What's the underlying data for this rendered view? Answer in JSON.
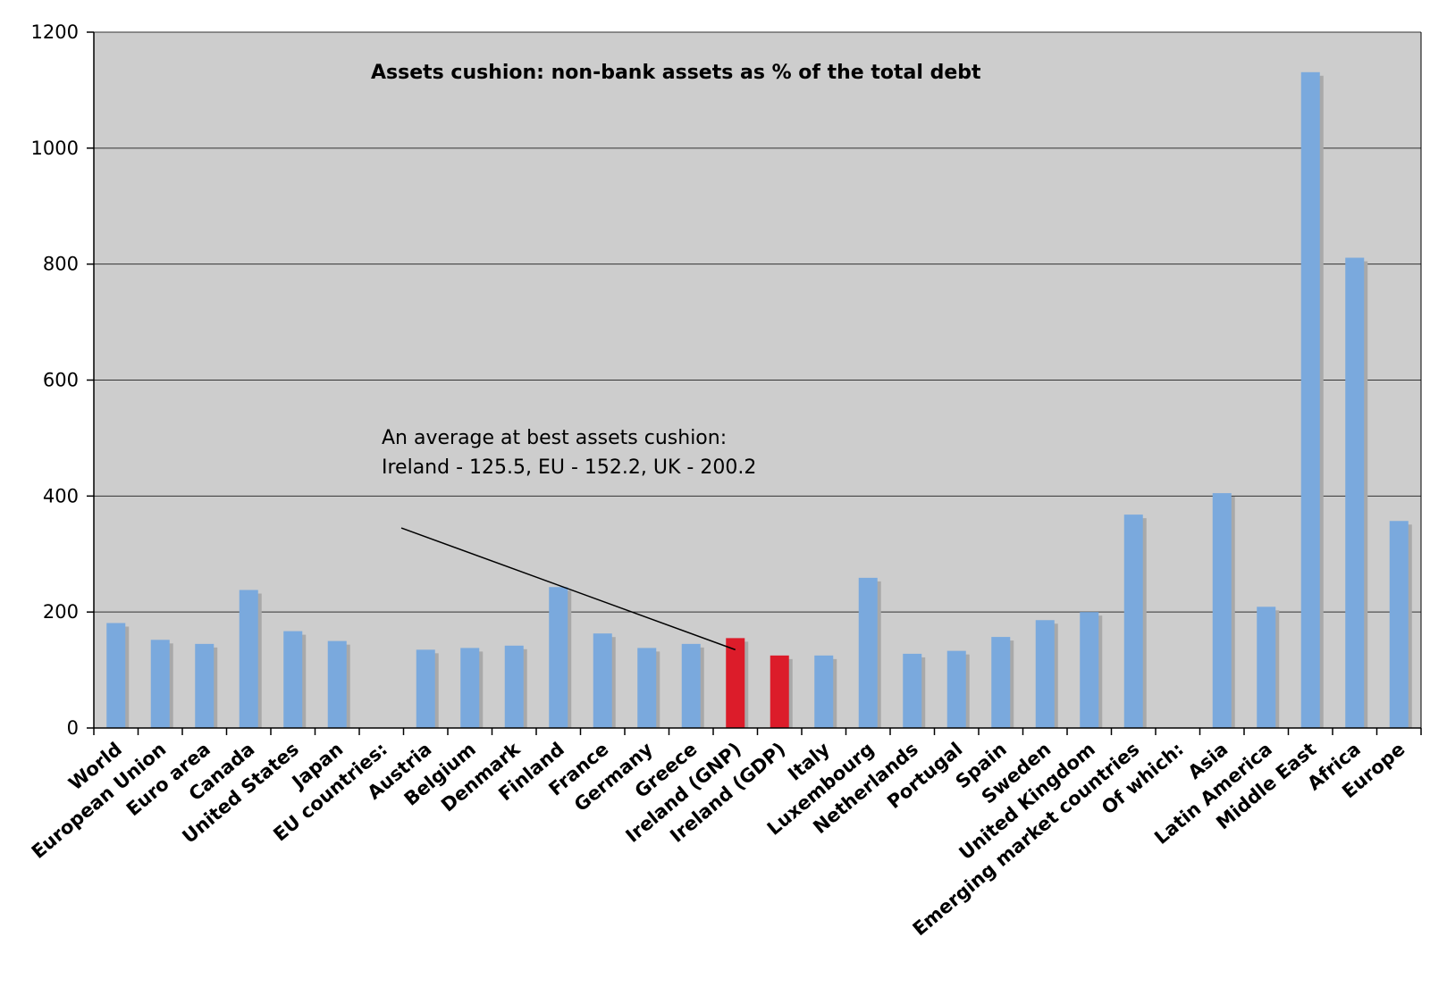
{
  "chart_data": {
    "type": "bar",
    "title": "Assets cushion: non-bank assets as % of the total debt",
    "xlabel": "",
    "ylabel": "",
    "ylim": [
      0,
      1200
    ],
    "yticks": [
      0,
      200,
      400,
      600,
      800,
      1000,
      1200
    ],
    "grid": true,
    "legend": "none",
    "categories": [
      "World",
      "European Union",
      "Euro area",
      "Canada",
      "United States",
      "Japan",
      "EU countries:",
      "Austria",
      "Belgium",
      "Denmark",
      "Finland",
      "France",
      "Germany",
      "Greece",
      "Ireland (GNP)",
      "Ireland (GDP)",
      "Italy",
      "Luxembourg",
      "Netherlands",
      "Portugal",
      "Spain",
      "Sweden",
      "United Kingdom",
      "Emerging market countries",
      "Of which:",
      "Asia",
      "Latin America",
      "Middle East",
      "Africa",
      "Europe"
    ],
    "values": [
      181,
      152,
      145,
      238,
      167,
      150,
      null,
      135,
      138,
      142,
      243,
      163,
      138,
      145,
      155,
      125,
      125,
      259,
      128,
      133,
      157,
      186,
      200,
      368,
      null,
      405,
      209,
      1131,
      811,
      357
    ],
    "highlighted": [
      "Ireland (GNP)",
      "Ireland (GDP)"
    ],
    "colors": {
      "bar": "#7aa9dd",
      "bar_highlight": "#dc1c2a",
      "shadow": "#a9a9a9",
      "plot_background": "#cdcdcd",
      "gridline": "#333333",
      "axis": "#000000"
    },
    "annotation": {
      "lines": [
        "An average at best assets cushion:",
        "Ireland - 125.5, EU - 152.2, UK - 200.2"
      ],
      "pointer_start": {
        "x": 6.95,
        "y": 345
      },
      "pointer_target": {
        "x": 14.5,
        "y": 135
      }
    }
  }
}
